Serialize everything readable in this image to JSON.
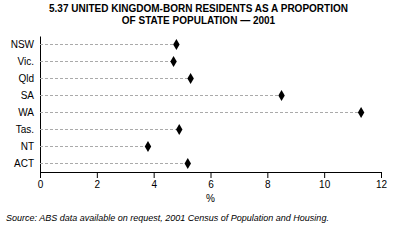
{
  "chart_data": {
    "type": "dot",
    "orientation": "horizontal",
    "title": "5.37   UNITED KINGDOM-BORN RESIDENTS AS A PROPORTION\nOF STATE POPULATION — 2001",
    "categories": [
      "NSW",
      "Vic.",
      "Qld",
      "SA",
      "WA",
      "Tas.",
      "NT",
      "ACT"
    ],
    "values": [
      4.8,
      4.7,
      5.3,
      8.5,
      11.3,
      4.9,
      3.8,
      5.2
    ],
    "xlabel": "%",
    "xlim": [
      0,
      12
    ],
    "xticks": [
      0,
      2,
      4,
      6,
      8,
      10,
      12
    ],
    "source": "Source: ABS data available on request, 2001 Census of Population and Housing.",
    "color": "#000000",
    "marker": "diamond",
    "line_style": "dashed",
    "grid": false
  }
}
